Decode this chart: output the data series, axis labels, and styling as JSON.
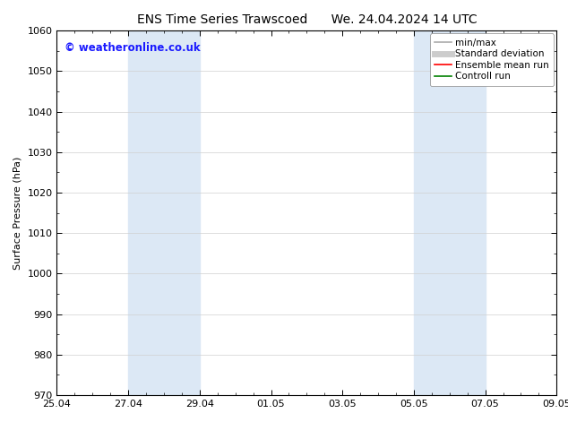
{
  "title_left": "ENS Time Series Trawscoed",
  "title_right": "We. 24.04.2024 14 UTC",
  "ylabel": "Surface Pressure (hPa)",
  "ylim": [
    970,
    1060
  ],
  "yticks": [
    970,
    980,
    990,
    1000,
    1010,
    1020,
    1030,
    1040,
    1050,
    1060
  ],
  "xtick_labels": [
    "25.04",
    "27.04",
    "29.04",
    "01.05",
    "03.05",
    "05.05",
    "07.05",
    "09.05"
  ],
  "xtick_positions": [
    0,
    2,
    4,
    6,
    8,
    10,
    12,
    14
  ],
  "shaded_bands": [
    {
      "x_start": 2,
      "x_end": 4
    },
    {
      "x_start": 10,
      "x_end": 12
    }
  ],
  "shaded_color": "#dce8f5",
  "watermark_text": "© weatheronline.co.uk",
  "watermark_color": "#1a1aff",
  "watermark_fontsize": 8.5,
  "legend_entries": [
    {
      "label": "min/max",
      "color": "#aaaaaa",
      "lw": 1.2
    },
    {
      "label": "Standard deviation",
      "color": "#cccccc",
      "lw": 5
    },
    {
      "label": "Ensemble mean run",
      "color": "#ff0000",
      "lw": 1.2
    },
    {
      "label": "Controll run",
      "color": "#008000",
      "lw": 1.2
    }
  ],
  "background_color": "#ffffff",
  "grid_color": "#d0d0d0",
  "title_fontsize": 10,
  "axis_label_fontsize": 8,
  "tick_fontsize": 8,
  "legend_fontsize": 7.5
}
